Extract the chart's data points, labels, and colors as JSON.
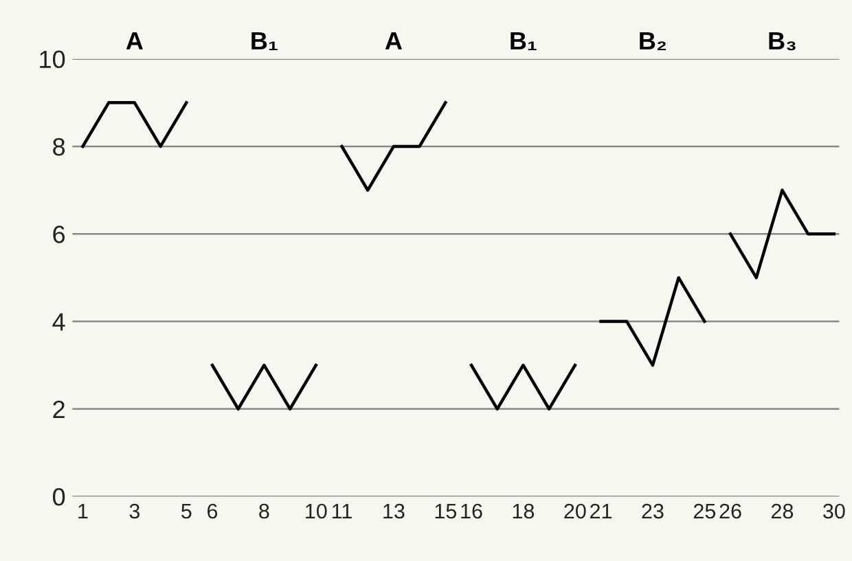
{
  "chart_data": {
    "type": "line",
    "series": [
      {
        "color": "#000000",
        "x": [
          1,
          2,
          3,
          4,
          5
        ],
        "values": [
          8,
          9,
          9,
          8,
          9
        ]
      },
      {
        "color": "#000000",
        "x": [
          6,
          7,
          8,
          9,
          10
        ],
        "values": [
          3,
          2,
          3,
          2,
          3
        ]
      },
      {
        "color": "#000000",
        "x": [
          11,
          12,
          13,
          14,
          15
        ],
        "values": [
          8,
          7,
          8,
          8,
          9
        ]
      },
      {
        "color": "#000000",
        "x": [
          16,
          17,
          18,
          19,
          20
        ],
        "values": [
          3,
          2,
          3,
          2,
          3
        ]
      },
      {
        "color": "#000000",
        "x": [
          21,
          22,
          23,
          24,
          25
        ],
        "values": [
          4,
          4,
          3,
          5,
          4
        ]
      },
      {
        "color": "#000000",
        "x": [
          26,
          27,
          28,
          29,
          30
        ],
        "values": [
          6,
          5,
          7,
          6,
          6
        ]
      }
    ],
    "annotations": [
      "A",
      "B₁",
      "A",
      "B₁",
      "B₂",
      "B₃"
    ],
    "xlim": [
      0.6,
      30.2
    ],
    "xticks": [
      1,
      3,
      5,
      6,
      8,
      10,
      11,
      13,
      15,
      16,
      18,
      20,
      21,
      23,
      25,
      26,
      28,
      30
    ],
    "ylim": [
      0,
      10
    ],
    "yticks": [
      0,
      2,
      4,
      6,
      8,
      10
    ],
    "grid": "y",
    "marker": "none",
    "line_style": "solid"
  }
}
